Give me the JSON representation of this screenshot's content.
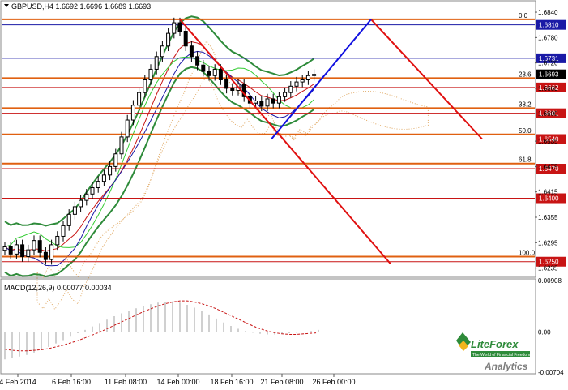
{
  "header": {
    "symbol_line": "GBPUSD,H4  1.6692 1.6696 1.6689 1.6693",
    "macd_line": "MACD(12,26,9) 0.00077 0.00034"
  },
  "brand": {
    "logo_name": "LiteForex",
    "tagline": "The World of Financial Freedom",
    "sub": "Analytics",
    "colors": {
      "green": "#2e8b3a",
      "gold": "#f2b51d"
    }
  },
  "chart_data": {
    "type": "line",
    "main_panel": {
      "symbol": "GBPUSD",
      "timeframe": "H4",
      "ylim": [
        1.6215,
        1.6865
      ],
      "y_ticks": [
        "1.6840",
        "1.6780",
        "1.6720",
        "1.6660",
        "1.6600",
        "1.6535",
        "1.6475",
        "1.6415",
        "1.6355",
        "1.6295",
        "1.6235"
      ],
      "current_price": "1.6693",
      "horizontal_levels": [
        {
          "price": 1.681,
          "label": "1.6810",
          "color": "#1a1aa6"
        },
        {
          "price": 1.6731,
          "label": "1.6731",
          "color": "#1a1aa6"
        },
        {
          "price": 1.6662,
          "label": "1.6662",
          "color": "#c81414"
        },
        {
          "price": 1.6601,
          "label": "1.6601",
          "color": "#c81414"
        },
        {
          "price": 1.654,
          "label": "1.6540",
          "color": "#c81414"
        },
        {
          "price": 1.647,
          "label": "1.6470",
          "color": "#c81414"
        },
        {
          "price": 1.64,
          "label": "1.6400",
          "color": "#c81414"
        },
        {
          "price": 1.625,
          "label": "1.6250",
          "color": "#c81414"
        }
      ],
      "fibonacci": [
        {
          "label": "0.0",
          "price": 1.6823
        },
        {
          "label": "23.6",
          "price": 1.6684
        },
        {
          "label": "38.2",
          "price": 1.6613
        },
        {
          "label": "50.0",
          "price": 1.6551
        },
        {
          "label": "61.8",
          "price": 1.6482
        },
        {
          "label": "100.0",
          "price": 1.6262
        }
      ],
      "x_labels": [
        "4 Feb 2014",
        "6 Feb 16:00",
        "11 Feb 08:00",
        "14 Feb 00:00",
        "18 Feb 16:00",
        "21 Feb 08:00",
        "26 Feb 00:00"
      ],
      "price_close": [
        1.6285,
        1.6268,
        1.629,
        1.6262,
        1.6278,
        1.63,
        1.6272,
        1.6255,
        1.629,
        1.631,
        1.6335,
        1.6362,
        1.638,
        1.6395,
        1.641,
        1.6425,
        1.644,
        1.6455,
        1.6475,
        1.6505,
        1.6545,
        1.6585,
        1.662,
        1.665,
        1.668,
        1.6705,
        1.6735,
        1.676,
        1.679,
        1.6815,
        1.6795,
        1.676,
        1.6735,
        1.6715,
        1.67,
        1.669,
        1.6705,
        1.668,
        1.666,
        1.6655,
        1.667,
        1.664,
        1.6625,
        1.663,
        1.6618,
        1.6635,
        1.6625,
        1.664,
        1.665,
        1.6665,
        1.6675,
        1.668,
        1.669,
        1.6693
      ]
    },
    "macd_panel": {
      "indicator": "MACD(12,26,9)",
      "values_label": "0.00077 0.00034",
      "ylim": [
        -0.00704,
        0.00908
      ],
      "y_ticks": [
        "0.00908",
        "0.00",
        "-0.00704"
      ],
      "histogram": [
        -0.0048,
        -0.0046,
        -0.0043,
        -0.004,
        -0.0036,
        -0.0031,
        -0.0026,
        -0.002,
        -0.0014,
        -0.0008,
        -0.0002,
        0.0004,
        0.001,
        0.0016,
        0.0022,
        0.0028,
        0.0033,
        0.0038,
        0.0042,
        0.0046,
        0.0049,
        0.0052,
        0.0053,
        0.0054,
        0.0052,
        0.0048,
        0.0043,
        0.0037,
        0.0031,
        0.0024,
        0.0017,
        0.0011,
        0.0006,
        0.0002,
        -0.0001,
        -0.0003,
        -0.0004,
        -0.0004,
        -0.0003,
        -0.0002,
        -0.0001,
        0.0,
        0.0002,
        0.0004
      ],
      "signal": [
        -0.003,
        -0.0032,
        -0.0033,
        -0.0033,
        -0.0032,
        -0.0031,
        -0.0029,
        -0.0026,
        -0.0023,
        -0.0019,
        -0.0015,
        -0.001,
        -0.0005,
        0.0,
        0.0006,
        0.0012,
        0.0018,
        0.0024,
        0.003,
        0.0036,
        0.0041,
        0.0046,
        0.005,
        0.0053,
        0.0055,
        0.0055,
        0.0053,
        0.005,
        0.0046,
        0.0041,
        0.0035,
        0.0029,
        0.0023,
        0.0017,
        0.0011,
        0.0006,
        0.0002,
        -0.0001,
        -0.0003,
        -0.0004,
        -0.0004,
        -0.0003,
        -0.0002,
        -0.0001
      ]
    }
  }
}
